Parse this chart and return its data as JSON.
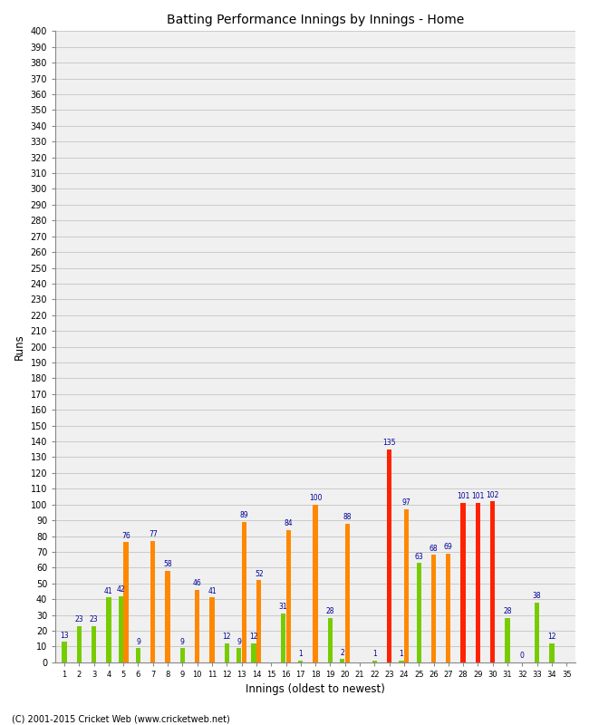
{
  "title": "Batting Performance Innings by Innings - Home",
  "xlabel": "Innings (oldest to newest)",
  "ylabel": "Runs",
  "footer": "(C) 2001-2015 Cricket Web (www.cricketweb.net)",
  "green_color": "#77cc00",
  "orange_color": "#ff8800",
  "red_color": "#ff2200",
  "label_color": "#000099",
  "ylim": [
    0,
    400
  ],
  "ytick_step": 10,
  "bars": [
    {
      "g": 13,
      "o": 0,
      "oc": "none"
    },
    {
      "g": 23,
      "o": 0,
      "oc": "none"
    },
    {
      "g": 23,
      "o": 0,
      "oc": "none"
    },
    {
      "g": 41,
      "o": 0,
      "oc": "none"
    },
    {
      "g": 42,
      "o": 76,
      "oc": "orange"
    },
    {
      "g": 9,
      "o": 0,
      "oc": "none"
    },
    {
      "g": 0,
      "o": 77,
      "oc": "orange"
    },
    {
      "g": 0,
      "o": 58,
      "oc": "orange"
    },
    {
      "g": 9,
      "o": 0,
      "oc": "none"
    },
    {
      "g": 0,
      "o": 46,
      "oc": "orange"
    },
    {
      "g": 0,
      "o": 41,
      "oc": "orange"
    },
    {
      "g": 12,
      "o": 0,
      "oc": "none"
    },
    {
      "g": 9,
      "o": 89,
      "oc": "orange"
    },
    {
      "g": 12,
      "o": 52,
      "oc": "orange"
    },
    {
      "g": 0,
      "o": 0,
      "oc": "none"
    },
    {
      "g": 31,
      "o": 84,
      "oc": "orange"
    },
    {
      "g": 1,
      "o": 0,
      "oc": "none"
    },
    {
      "g": 0,
      "o": 100,
      "oc": "orange"
    },
    {
      "g": 28,
      "o": 0,
      "oc": "none"
    },
    {
      "g": 2,
      "o": 88,
      "oc": "orange"
    },
    {
      "g": 0,
      "o": 0,
      "oc": "none"
    },
    {
      "g": 1,
      "o": 0,
      "oc": "none"
    },
    {
      "g": 0,
      "o": 135,
      "oc": "red"
    },
    {
      "g": 1,
      "o": 97,
      "oc": "orange"
    },
    {
      "g": 63,
      "o": 0,
      "oc": "none"
    },
    {
      "g": 0,
      "o": 68,
      "oc": "orange"
    },
    {
      "g": 0,
      "o": 69,
      "oc": "orange"
    },
    {
      "g": 0,
      "o": 101,
      "oc": "red"
    },
    {
      "g": 0,
      "o": 101,
      "oc": "red"
    },
    {
      "g": 0,
      "o": 102,
      "oc": "red"
    },
    {
      "g": 28,
      "o": 0,
      "oc": "none"
    },
    {
      "g": 0,
      "o": 0,
      "oc": "none"
    },
    {
      "g": 38,
      "o": 0,
      "oc": "none"
    },
    {
      "g": 12,
      "o": 0,
      "oc": "none"
    },
    {
      "g": 0,
      "o": 0,
      "oc": "none"
    }
  ]
}
